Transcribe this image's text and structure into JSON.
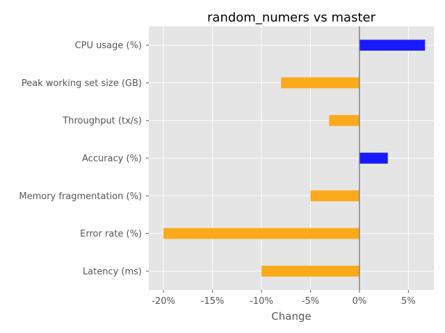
{
  "chart_data": {
    "type": "bar",
    "orientation": "horizontal",
    "title": "random_numers vs master",
    "xlabel": "Change",
    "ylabel": "",
    "categories": [
      "CPU usage (%)",
      "Peak working set size (GB)",
      "Throughput (tx/s)",
      "Accuracy (%)",
      "Memory fragmentation (%)",
      "Error rate (%)",
      "Latency (ms)"
    ],
    "values": [
      6.7,
      -8.0,
      -3.1,
      2.9,
      -5.0,
      -20.0,
      -10.0
    ],
    "xlim": [
      -21.5,
      7.6
    ],
    "xticks": [
      -20,
      -15,
      -10,
      -5,
      0,
      5
    ],
    "xtick_labels": [
      "-20%",
      "-15%",
      "-10%",
      "-5%",
      "0%",
      "5%"
    ],
    "grid": true,
    "colors": {
      "positive": "#1a1aff",
      "negative": "#fbaa1b",
      "background": "#e5e5e5",
      "grid": "#ffffff",
      "zero_line": "#808080"
    }
  }
}
